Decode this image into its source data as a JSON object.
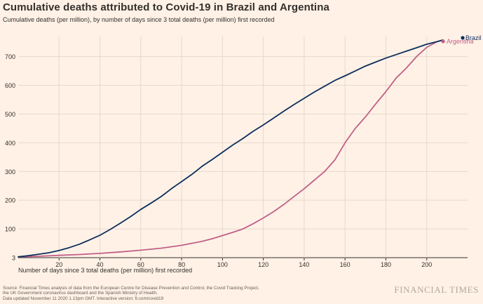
{
  "title": "Cumulative deaths attributed to Covid-19 in Brazil and Argentina",
  "subtitle": "Cumulative deaths (per million), by number of days since 3 total deaths (per million) first recorded",
  "xlabel": "Number of days since 3 total deaths (per million) first recorded",
  "footer": {
    "line1": "Source: Financial Times analysis of data from the European Centre for Disease Prevention and Control, the Covid Tracking Project,",
    "line2": "the UK Government coronavirus dashboard and the Spanish Ministry of Health.",
    "line3": "Data updated November 11 2020 1.13pm GMT. Interactive version: ft.com/covid19"
  },
  "brand": "FINANCIAL TIMES",
  "colors": {
    "brazil": "#0d2e5e",
    "argentina": "#c0608a",
    "grid": "#e4d8ce",
    "axis": "#33302e"
  },
  "chart_data": {
    "type": "line",
    "title": "Cumulative deaths attributed to Covid-19 in Brazil and Argentina",
    "xlabel": "Number of days since 3 total deaths (per million) first recorded",
    "ylabel": "Cumulative deaths (per million)",
    "xlim": [
      0,
      220
    ],
    "ylim": [
      0,
      770
    ],
    "x_ticks": [
      20,
      40,
      60,
      80,
      100,
      120,
      140,
      160,
      180,
      200
    ],
    "y_ticks": [
      3,
      100,
      200,
      300,
      400,
      500,
      600,
      700
    ],
    "y_scale": "log",
    "grid": true,
    "series": [
      {
        "name": "Brazil",
        "color": "#0d2e5e",
        "x": [
          0,
          5,
          10,
          15,
          20,
          25,
          30,
          35,
          40,
          45,
          50,
          55,
          60,
          65,
          70,
          75,
          80,
          85,
          90,
          95,
          100,
          105,
          110,
          115,
          120,
          125,
          130,
          135,
          140,
          145,
          150,
          155,
          160,
          165,
          170,
          175,
          180,
          185,
          190,
          195,
          200,
          205,
          208
        ],
        "y": [
          3,
          7,
          12,
          17,
          25,
          35,
          47,
          62,
          78,
          98,
          120,
          143,
          168,
          190,
          213,
          240,
          265,
          290,
          318,
          342,
          367,
          392,
          415,
          440,
          462,
          486,
          510,
          533,
          555,
          577,
          597,
          617,
          633,
          650,
          667,
          681,
          695,
          707,
          719,
          731,
          743,
          752,
          758
        ]
      },
      {
        "name": "Argentina",
        "color": "#c0608a",
        "x": [
          0,
          10,
          20,
          30,
          40,
          50,
          60,
          70,
          80,
          90,
          95,
          100,
          105,
          110,
          115,
          120,
          125,
          130,
          135,
          140,
          145,
          150,
          155,
          160,
          165,
          170,
          175,
          180,
          185,
          190,
          195,
          200,
          205,
          208
        ],
        "y": [
          3,
          5,
          8,
          11,
          15,
          20,
          26,
          33,
          43,
          57,
          66,
          77,
          88,
          100,
          118,
          138,
          160,
          185,
          213,
          240,
          270,
          300,
          340,
          400,
          450,
          490,
          535,
          578,
          625,
          660,
          700,
          732,
          752,
          758
        ]
      }
    ]
  }
}
